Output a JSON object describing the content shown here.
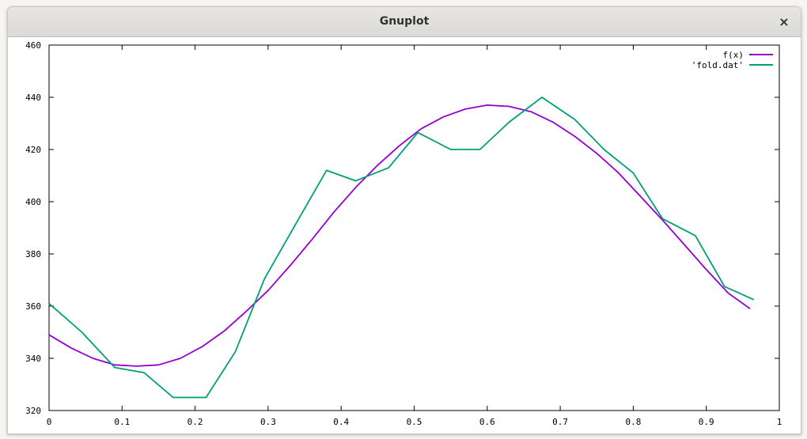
{
  "window": {
    "title": "Gnuplot",
    "close_glyph": "×"
  },
  "chart_data": {
    "type": "line",
    "xlim": [
      0,
      1
    ],
    "ylim": [
      320,
      460
    ],
    "xticks": [
      0,
      0.1,
      0.2,
      0.3,
      0.4,
      0.5,
      0.6,
      0.7,
      0.8,
      0.9,
      1
    ],
    "xtick_labels": [
      "0",
      "0.1",
      "0.2",
      "0.3",
      "0.4",
      "0.5",
      "0.6",
      "0.7",
      "0.8",
      "0.9",
      "1"
    ],
    "yticks": [
      320,
      340,
      360,
      380,
      400,
      420,
      440,
      460
    ],
    "ytick_labels": [
      "320",
      "340",
      "360",
      "380",
      "400",
      "420",
      "440",
      "460"
    ],
    "grid": false,
    "legend_position": "top-right",
    "series": [
      {
        "name": "f(x)",
        "color": "#9400d3",
        "x": [
          0,
          0.03,
          0.06,
          0.09,
          0.12,
          0.15,
          0.18,
          0.21,
          0.24,
          0.27,
          0.3,
          0.33,
          0.36,
          0.39,
          0.42,
          0.45,
          0.48,
          0.51,
          0.54,
          0.57,
          0.6,
          0.63,
          0.66,
          0.69,
          0.72,
          0.75,
          0.78,
          0.81,
          0.84,
          0.87,
          0.9,
          0.93,
          0.96
        ],
        "values": [
          349,
          344,
          340,
          337.5,
          337,
          337.5,
          340,
          344.5,
          350.5,
          358,
          366,
          375.5,
          385.5,
          396,
          405.5,
          414,
          421.5,
          428,
          432.5,
          435.5,
          437,
          436.5,
          434.5,
          430.5,
          425,
          418.5,
          411,
          402,
          393,
          383.5,
          374,
          365,
          359
        ]
      },
      {
        "name": "'fold.dat'",
        "color": "#009e73",
        "x": [
          0,
          0.045,
          0.09,
          0.13,
          0.17,
          0.215,
          0.255,
          0.295,
          0.34,
          0.38,
          0.42,
          0.465,
          0.505,
          0.55,
          0.59,
          0.63,
          0.675,
          0.72,
          0.76,
          0.8,
          0.84,
          0.885,
          0.925,
          0.965
        ],
        "values": [
          361,
          350,
          336.5,
          334.5,
          325,
          325,
          342.5,
          370.5,
          392.5,
          412,
          408,
          413,
          426.5,
          420,
          420,
          430.5,
          440,
          431.5,
          420,
          411,
          393.5,
          387,
          367.5,
          362.5
        ]
      }
    ]
  }
}
